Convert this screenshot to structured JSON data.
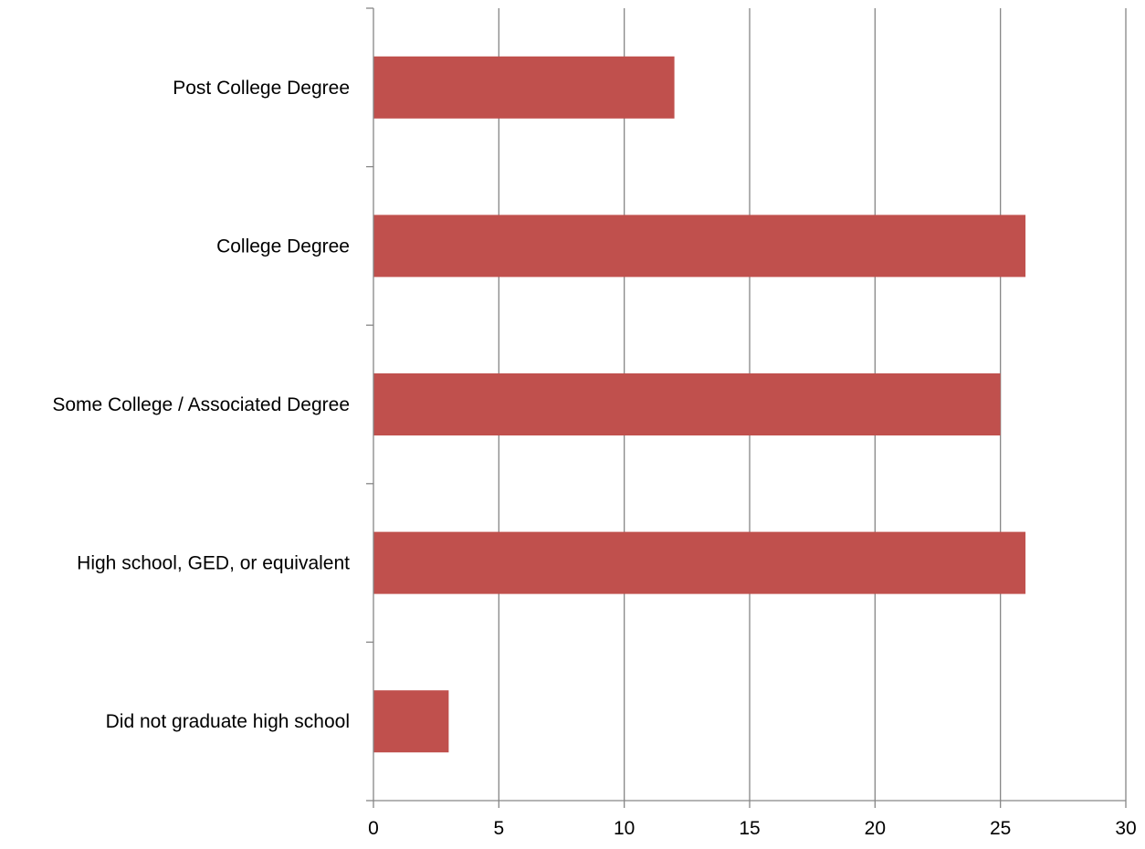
{
  "chart_data": {
    "type": "bar",
    "orientation": "horizontal",
    "title": "",
    "xlabel": "",
    "ylabel": "",
    "categories": [
      "Post College Degree",
      "College Degree",
      "Some College / Associated Degree",
      "High school, GED, or equivalent",
      "Did not graduate high school"
    ],
    "values": [
      12,
      26,
      25,
      26,
      3
    ],
    "xlim": [
      0,
      30
    ],
    "x_ticks": [
      0,
      5,
      10,
      15,
      20,
      25,
      30
    ],
    "grid": "vertical",
    "legend": "none",
    "colors": {
      "bar": "#c0504d",
      "grid": "#868686",
      "axis": "#868686"
    }
  }
}
